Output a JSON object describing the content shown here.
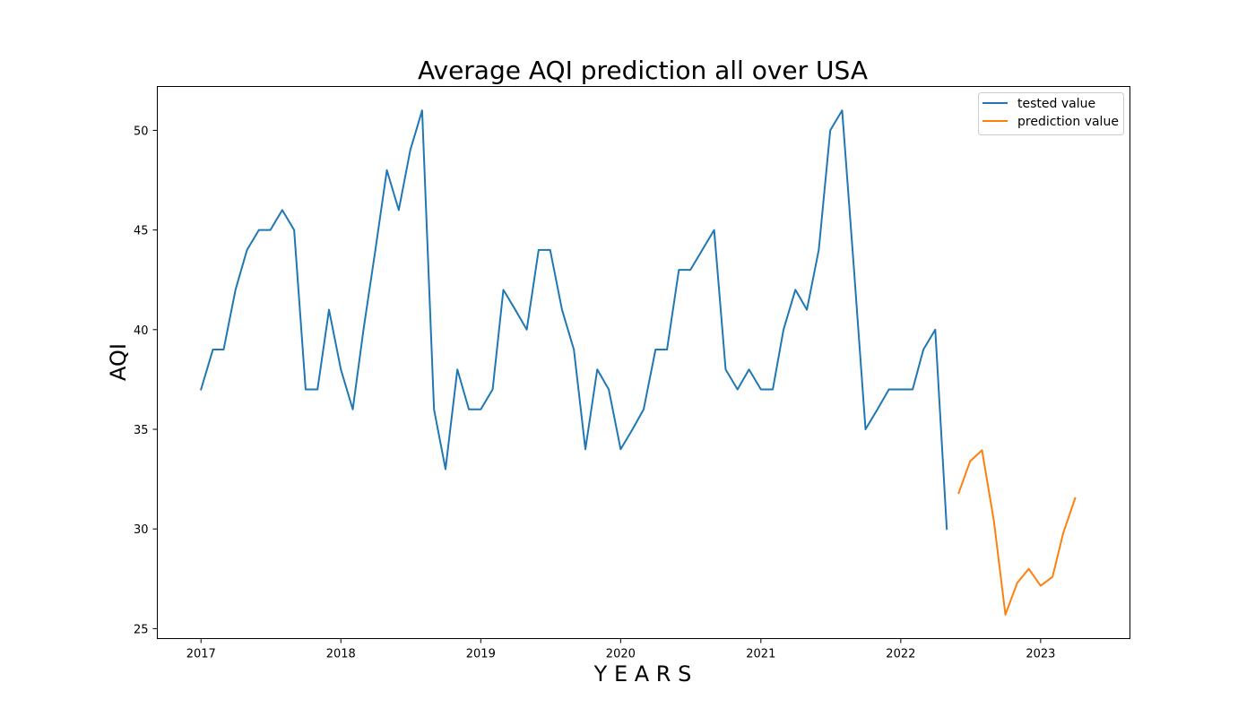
{
  "chart_data": {
    "type": "line",
    "title": "Average AQI prediction all over USA",
    "xlabel": "Y E A R S",
    "ylabel": "AQI",
    "xlim": [
      "2016-09-09",
      "2023-08-22"
    ],
    "ylim": [
      24.5,
      52.2
    ],
    "x_ticks": [
      {
        "date": "2017-01-01",
        "label": "2017"
      },
      {
        "date": "2018-01-01",
        "label": "2018"
      },
      {
        "date": "2019-01-01",
        "label": "2019"
      },
      {
        "date": "2020-01-01",
        "label": "2020"
      },
      {
        "date": "2021-01-01",
        "label": "2021"
      },
      {
        "date": "2022-01-01",
        "label": "2022"
      },
      {
        "date": "2023-01-01",
        "label": "2023"
      }
    ],
    "y_ticks": [
      25,
      30,
      35,
      40,
      45,
      50
    ],
    "grid": false,
    "legend_position": "top-right",
    "series": [
      {
        "name": "tested value",
        "color": "#1f77b4",
        "x": [
          "2017-01-01",
          "2017-02-01",
          "2017-03-01",
          "2017-04-01",
          "2017-05-01",
          "2017-06-01",
          "2017-07-01",
          "2017-08-01",
          "2017-09-01",
          "2017-10-01",
          "2017-11-01",
          "2017-12-01",
          "2018-01-01",
          "2018-02-01",
          "2018-03-01",
          "2018-04-01",
          "2018-05-01",
          "2018-06-01",
          "2018-07-01",
          "2018-08-01",
          "2018-09-01",
          "2018-10-01",
          "2018-11-01",
          "2018-12-01",
          "2019-01-01",
          "2019-02-01",
          "2019-03-01",
          "2019-04-01",
          "2019-05-01",
          "2019-06-01",
          "2019-07-01",
          "2019-08-01",
          "2019-09-01",
          "2019-10-01",
          "2019-11-01",
          "2019-12-01",
          "2020-01-01",
          "2020-02-01",
          "2020-03-01",
          "2020-04-01",
          "2020-05-01",
          "2020-06-01",
          "2020-07-01",
          "2020-08-01",
          "2020-09-01",
          "2020-10-01",
          "2020-11-01",
          "2020-12-01",
          "2021-01-01",
          "2021-02-01",
          "2021-03-01",
          "2021-04-01",
          "2021-05-01",
          "2021-06-01",
          "2021-07-01",
          "2021-08-01",
          "2021-09-01",
          "2021-10-01",
          "2021-11-01",
          "2021-12-01",
          "2022-01-01",
          "2022-02-01",
          "2022-03-01",
          "2022-04-01",
          "2022-05-01"
        ],
        "values": [
          37,
          39,
          39,
          42,
          44,
          45,
          45,
          46,
          45,
          37,
          37,
          41,
          38,
          36,
          40,
          44,
          48,
          46,
          49,
          51,
          36,
          33,
          38,
          36,
          36,
          37,
          42,
          41,
          40,
          44,
          44,
          41,
          39,
          34,
          38,
          37,
          34,
          35,
          36,
          39,
          39,
          43,
          43,
          44,
          45,
          38,
          37,
          38,
          37,
          37,
          40,
          42,
          41,
          44,
          50,
          51,
          43,
          35,
          36,
          37,
          37,
          37,
          39,
          40,
          30
        ]
      },
      {
        "name": "prediction value",
        "color": "#ff7f0e",
        "x": [
          "2022-06-01",
          "2022-07-01",
          "2022-08-01",
          "2022-09-01",
          "2022-10-01",
          "2022-11-01",
          "2022-12-01",
          "2023-01-01",
          "2023-02-01",
          "2023-03-01",
          "2023-04-01"
        ],
        "values": [
          31.8,
          33.4,
          33.95,
          30.4,
          25.7,
          27.3,
          28.0,
          27.15,
          27.6,
          29.8,
          31.55
        ]
      }
    ]
  }
}
